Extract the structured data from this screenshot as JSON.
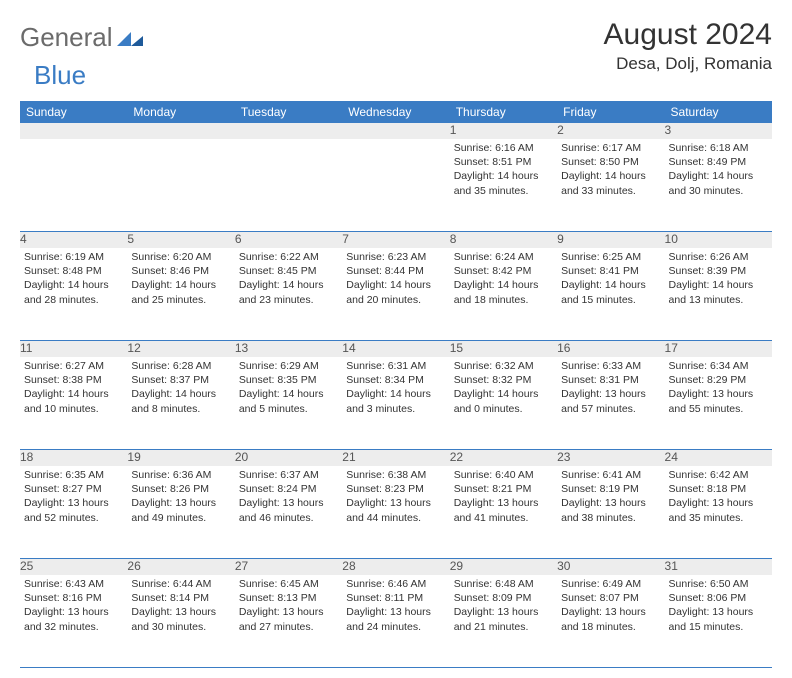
{
  "brand": {
    "word1": "General",
    "word2": "Blue"
  },
  "header": {
    "month_title": "August 2024",
    "location": "Desa, Dolj, Romania"
  },
  "colors": {
    "header_bg": "#3a7cc4",
    "header_fg": "#ffffff",
    "daynum_bg": "#ededed",
    "row_border": "#3a7cc4",
    "brand_gray": "#6b6b6b",
    "brand_blue": "#3a7cc4"
  },
  "columns": [
    "Sunday",
    "Monday",
    "Tuesday",
    "Wednesday",
    "Thursday",
    "Friday",
    "Saturday"
  ],
  "weeks": [
    {
      "nums": [
        "",
        "",
        "",
        "",
        "1",
        "2",
        "3"
      ],
      "cells": [
        null,
        null,
        null,
        null,
        {
          "sunrise": "6:16 AM",
          "sunset": "8:51 PM",
          "daylight": "14 hours and 35 minutes."
        },
        {
          "sunrise": "6:17 AM",
          "sunset": "8:50 PM",
          "daylight": "14 hours and 33 minutes."
        },
        {
          "sunrise": "6:18 AM",
          "sunset": "8:49 PM",
          "daylight": "14 hours and 30 minutes."
        }
      ]
    },
    {
      "nums": [
        "4",
        "5",
        "6",
        "7",
        "8",
        "9",
        "10"
      ],
      "cells": [
        {
          "sunrise": "6:19 AM",
          "sunset": "8:48 PM",
          "daylight": "14 hours and 28 minutes."
        },
        {
          "sunrise": "6:20 AM",
          "sunset": "8:46 PM",
          "daylight": "14 hours and 25 minutes."
        },
        {
          "sunrise": "6:22 AM",
          "sunset": "8:45 PM",
          "daylight": "14 hours and 23 minutes."
        },
        {
          "sunrise": "6:23 AM",
          "sunset": "8:44 PM",
          "daylight": "14 hours and 20 minutes."
        },
        {
          "sunrise": "6:24 AM",
          "sunset": "8:42 PM",
          "daylight": "14 hours and 18 minutes."
        },
        {
          "sunrise": "6:25 AM",
          "sunset": "8:41 PM",
          "daylight": "14 hours and 15 minutes."
        },
        {
          "sunrise": "6:26 AM",
          "sunset": "8:39 PM",
          "daylight": "14 hours and 13 minutes."
        }
      ]
    },
    {
      "nums": [
        "11",
        "12",
        "13",
        "14",
        "15",
        "16",
        "17"
      ],
      "cells": [
        {
          "sunrise": "6:27 AM",
          "sunset": "8:38 PM",
          "daylight": "14 hours and 10 minutes."
        },
        {
          "sunrise": "6:28 AM",
          "sunset": "8:37 PM",
          "daylight": "14 hours and 8 minutes."
        },
        {
          "sunrise": "6:29 AM",
          "sunset": "8:35 PM",
          "daylight": "14 hours and 5 minutes."
        },
        {
          "sunrise": "6:31 AM",
          "sunset": "8:34 PM",
          "daylight": "14 hours and 3 minutes."
        },
        {
          "sunrise": "6:32 AM",
          "sunset": "8:32 PM",
          "daylight": "14 hours and 0 minutes."
        },
        {
          "sunrise": "6:33 AM",
          "sunset": "8:31 PM",
          "daylight": "13 hours and 57 minutes."
        },
        {
          "sunrise": "6:34 AM",
          "sunset": "8:29 PM",
          "daylight": "13 hours and 55 minutes."
        }
      ]
    },
    {
      "nums": [
        "18",
        "19",
        "20",
        "21",
        "22",
        "23",
        "24"
      ],
      "cells": [
        {
          "sunrise": "6:35 AM",
          "sunset": "8:27 PM",
          "daylight": "13 hours and 52 minutes."
        },
        {
          "sunrise": "6:36 AM",
          "sunset": "8:26 PM",
          "daylight": "13 hours and 49 minutes."
        },
        {
          "sunrise": "6:37 AM",
          "sunset": "8:24 PM",
          "daylight": "13 hours and 46 minutes."
        },
        {
          "sunrise": "6:38 AM",
          "sunset": "8:23 PM",
          "daylight": "13 hours and 44 minutes."
        },
        {
          "sunrise": "6:40 AM",
          "sunset": "8:21 PM",
          "daylight": "13 hours and 41 minutes."
        },
        {
          "sunrise": "6:41 AM",
          "sunset": "8:19 PM",
          "daylight": "13 hours and 38 minutes."
        },
        {
          "sunrise": "6:42 AM",
          "sunset": "8:18 PM",
          "daylight": "13 hours and 35 minutes."
        }
      ]
    },
    {
      "nums": [
        "25",
        "26",
        "27",
        "28",
        "29",
        "30",
        "31"
      ],
      "cells": [
        {
          "sunrise": "6:43 AM",
          "sunset": "8:16 PM",
          "daylight": "13 hours and 32 minutes."
        },
        {
          "sunrise": "6:44 AM",
          "sunset": "8:14 PM",
          "daylight": "13 hours and 30 minutes."
        },
        {
          "sunrise": "6:45 AM",
          "sunset": "8:13 PM",
          "daylight": "13 hours and 27 minutes."
        },
        {
          "sunrise": "6:46 AM",
          "sunset": "8:11 PM",
          "daylight": "13 hours and 24 minutes."
        },
        {
          "sunrise": "6:48 AM",
          "sunset": "8:09 PM",
          "daylight": "13 hours and 21 minutes."
        },
        {
          "sunrise": "6:49 AM",
          "sunset": "8:07 PM",
          "daylight": "13 hours and 18 minutes."
        },
        {
          "sunrise": "6:50 AM",
          "sunset": "8:06 PM",
          "daylight": "13 hours and 15 minutes."
        }
      ]
    }
  ],
  "labels": {
    "sunrise": "Sunrise:",
    "sunset": "Sunset:",
    "daylight": "Daylight:"
  }
}
